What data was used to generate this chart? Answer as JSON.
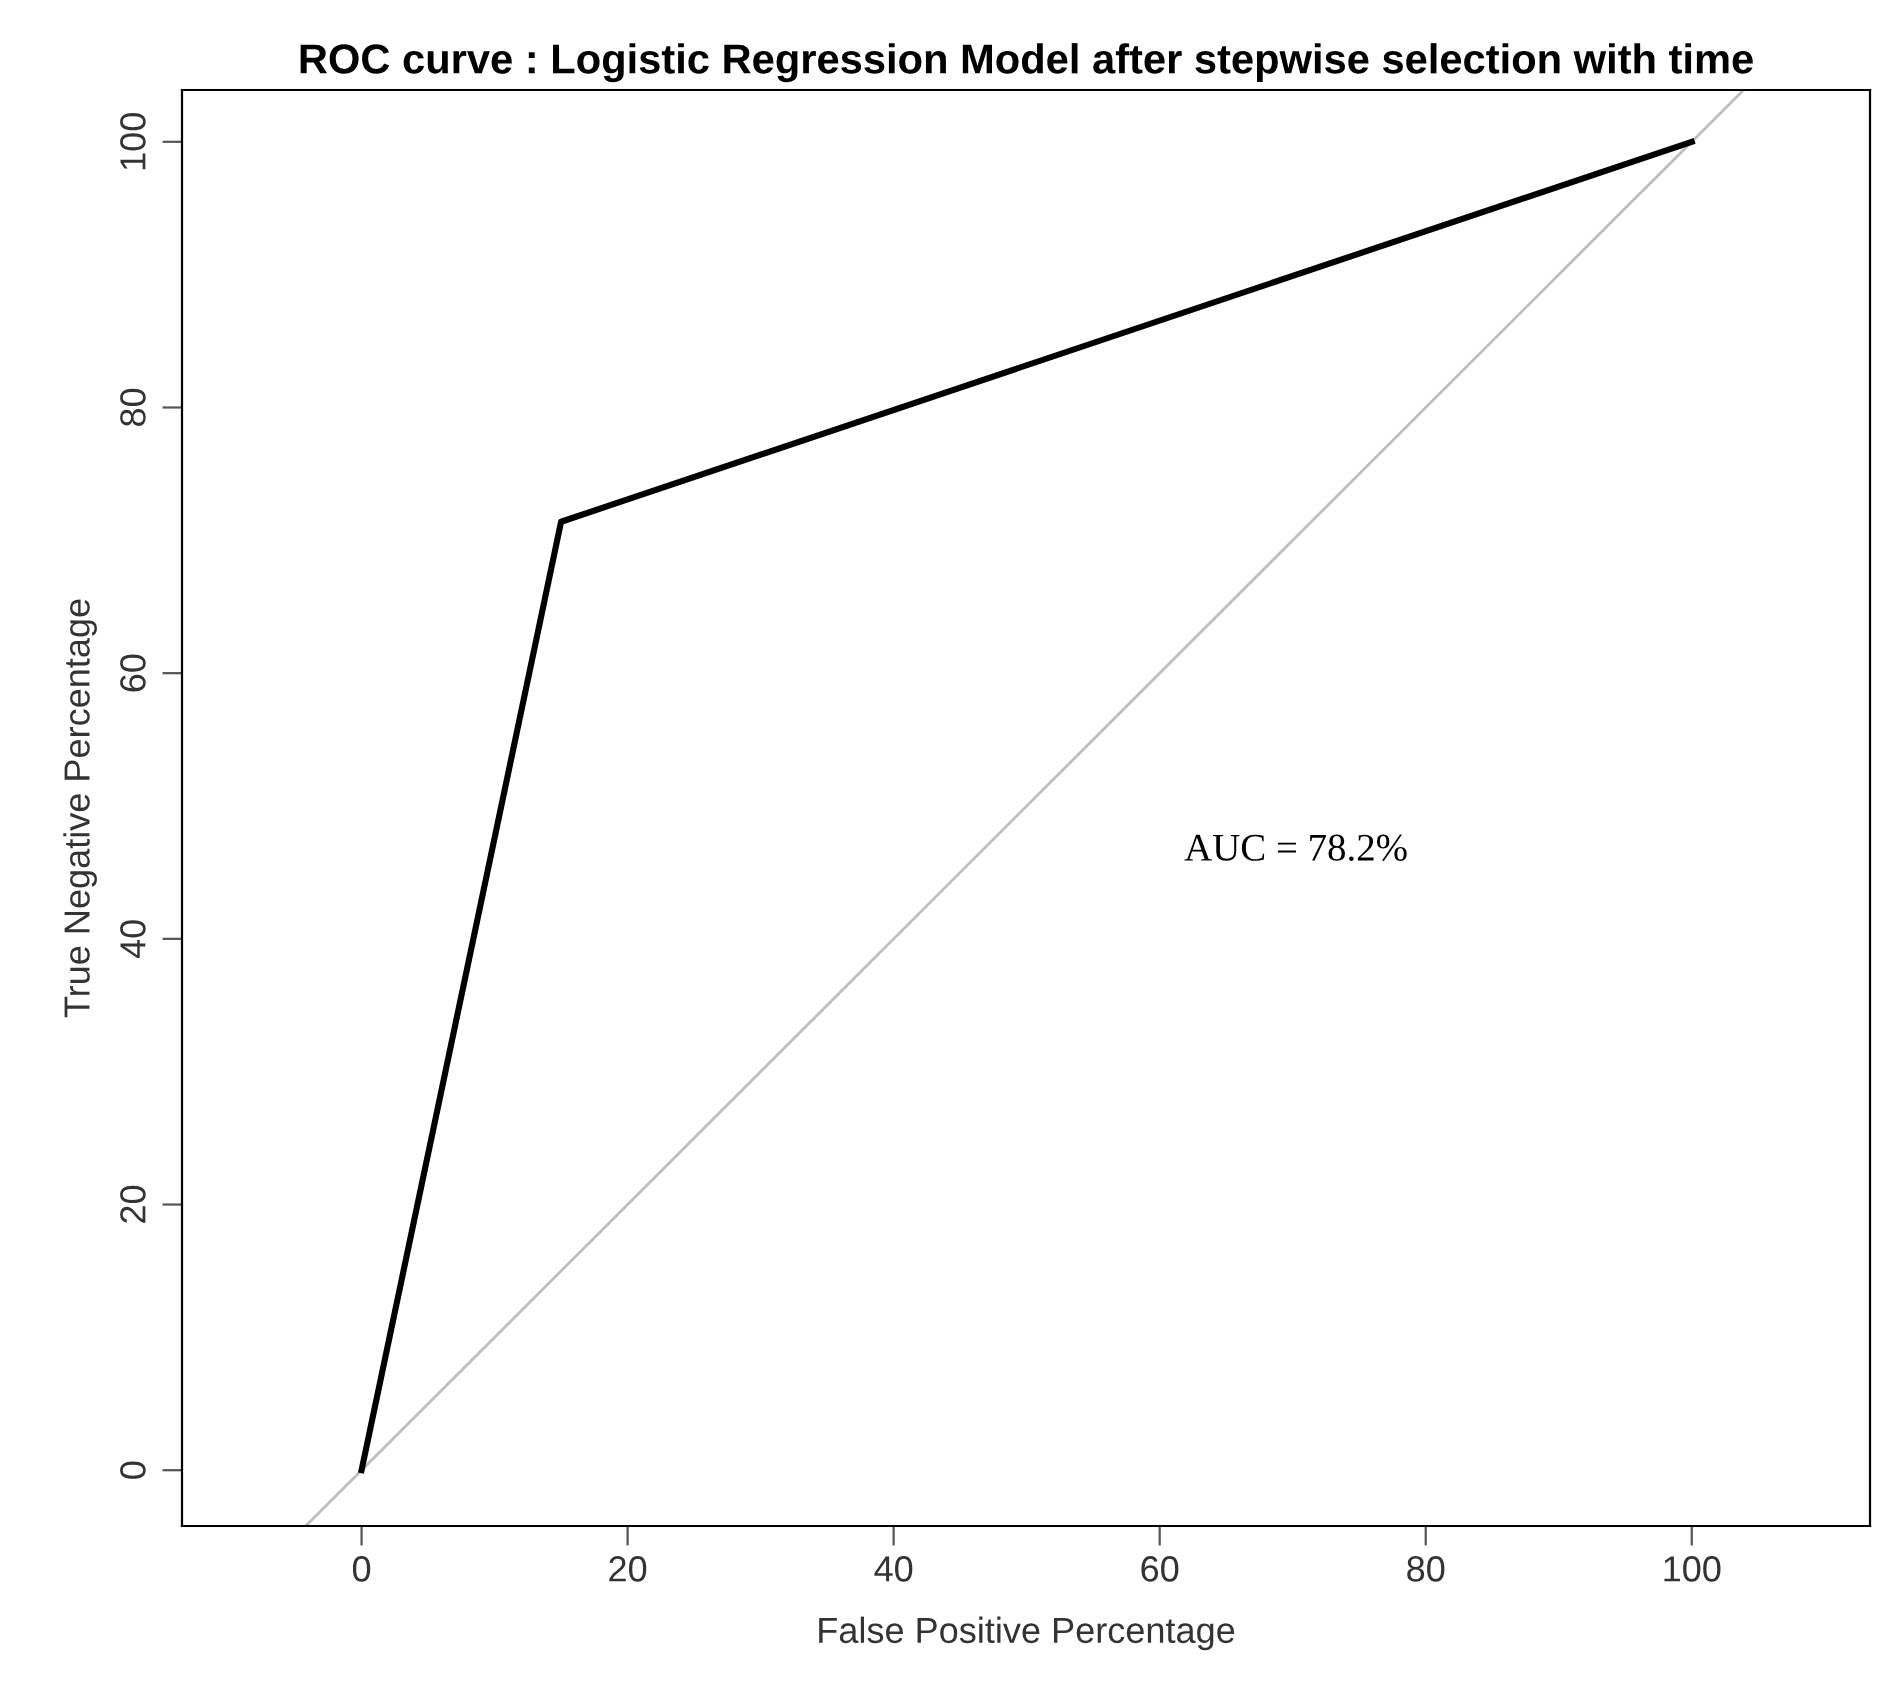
{
  "chart_data": {
    "type": "line",
    "title": "ROC curve : Logistic Regression Model after stepwise selection with time",
    "xlabel": "False Positive Percentage",
    "ylabel": "True Negative Percentage",
    "series": [
      {
        "x": [
          -4.2,
          103.9
        ],
        "values": [
          -4.2,
          103.9
        ],
        "color": "#bebebe"
      },
      {
        "x": [
          0,
          15,
          100
        ],
        "values": [
          0,
          71.4,
          100
        ],
        "color": "#000000"
      }
    ],
    "xlim": [
      -13.5,
      113.4
    ],
    "ylim": [
      -4.2,
      103.9
    ],
    "xticks": [
      0,
      20,
      40,
      60,
      80,
      100
    ],
    "yticks": [
      0,
      20,
      40,
      60,
      80,
      100
    ],
    "annotations": [
      "AUC = 78.2%"
    ],
    "grid": false,
    "marker": "none",
    "line_style": "solid"
  }
}
